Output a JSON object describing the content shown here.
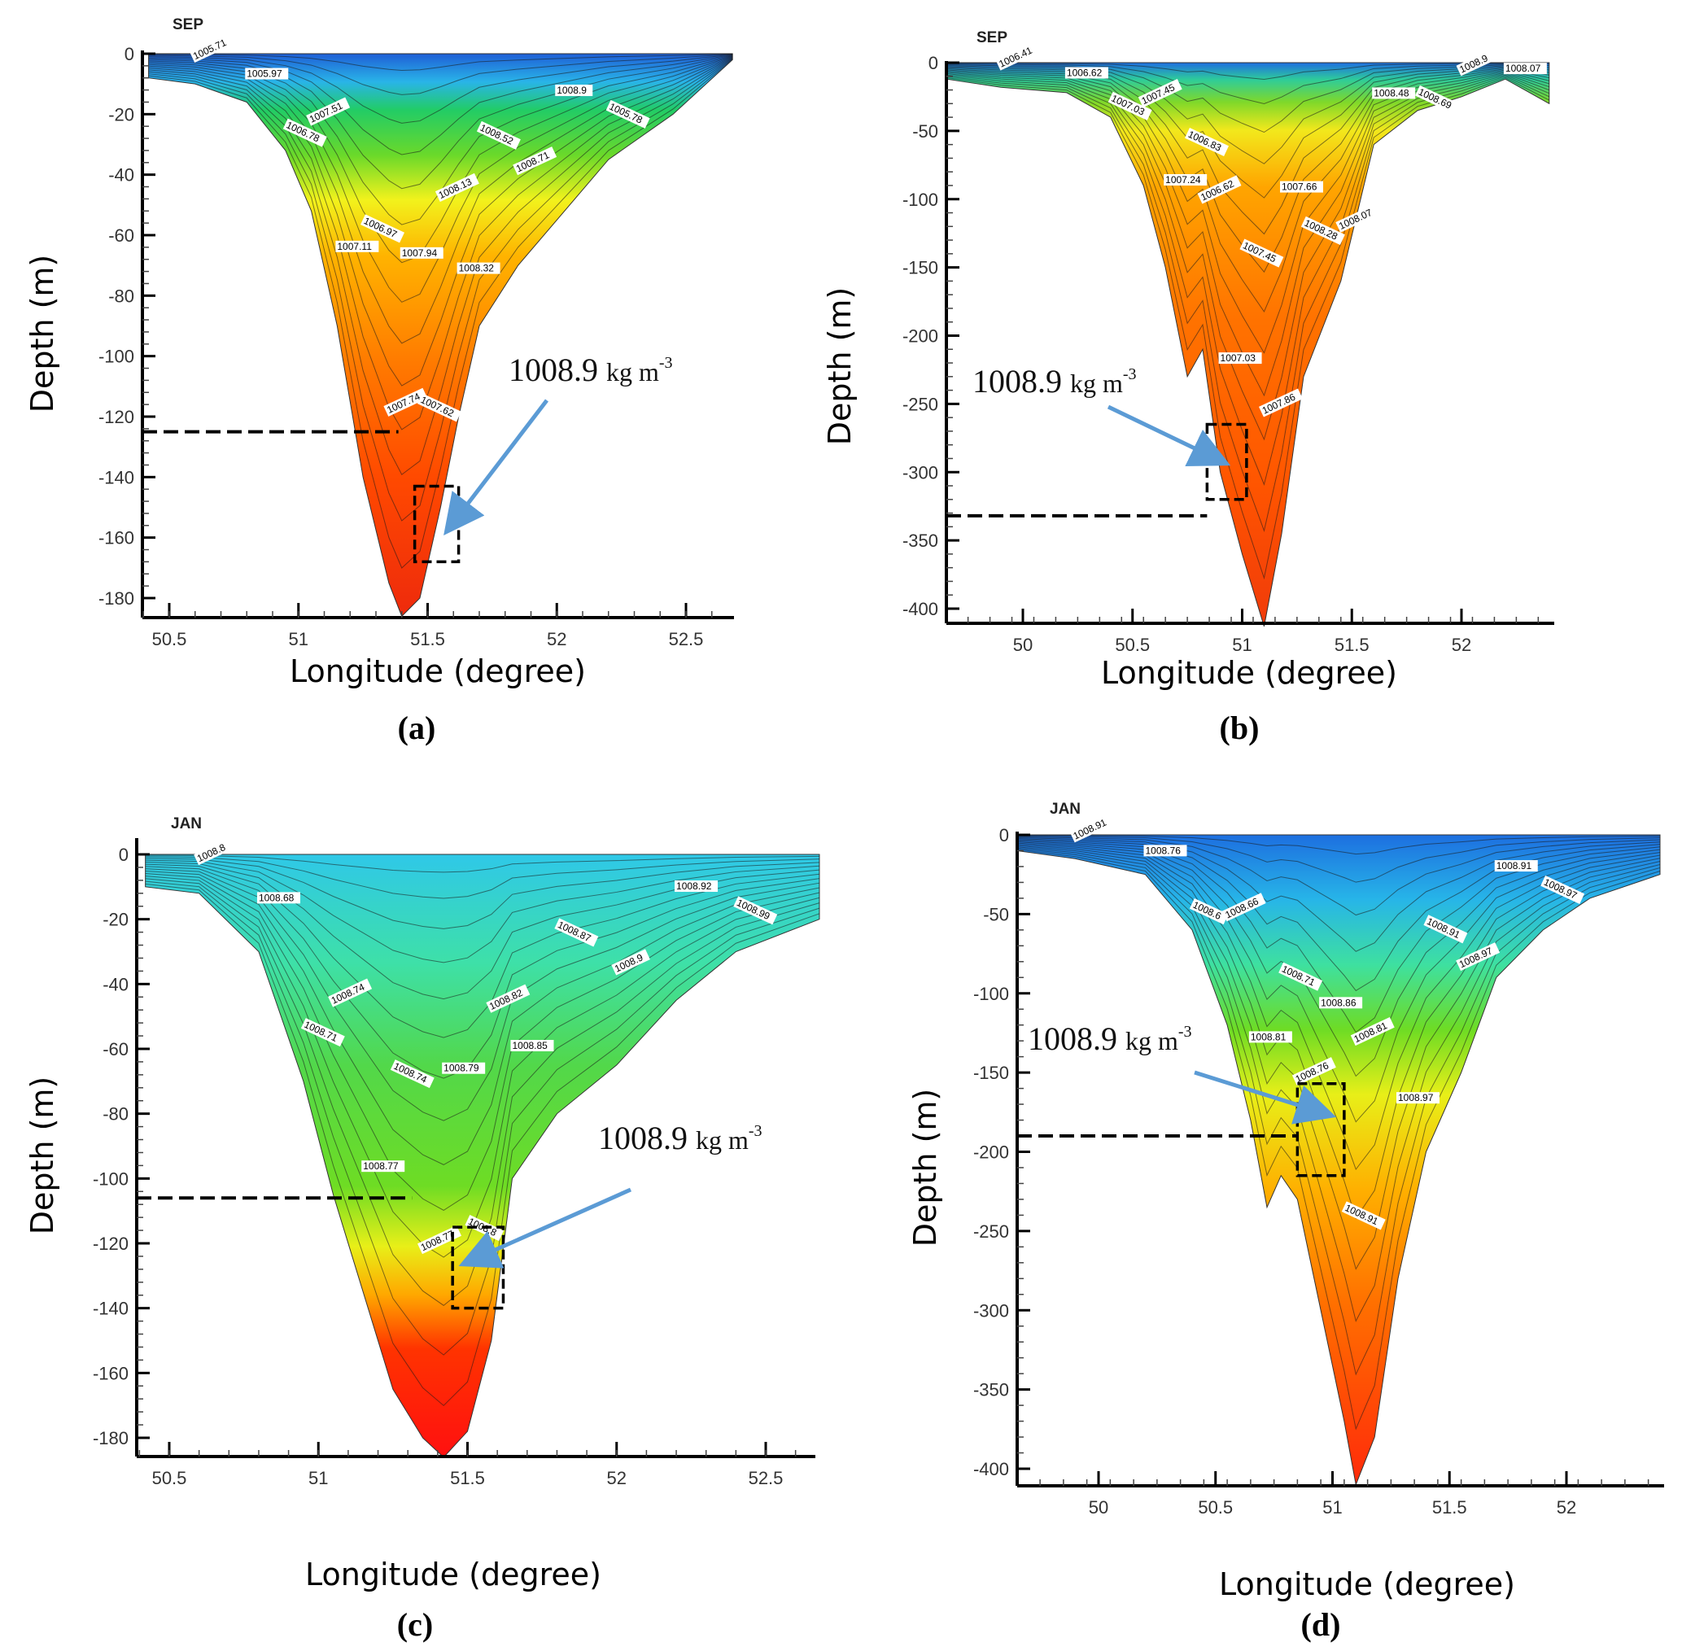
{
  "figure": {
    "description": "Vertical density sections (kg m-3) across the Persian Gulf: September (a,b) and January (c,d)"
  },
  "chart_data": [
    {
      "id": "a",
      "type": "heatmap",
      "panel_label": "(a)",
      "month": "SEP",
      "xlabel": "Longitude (degree)",
      "ylabel": "Depth (m)",
      "xlim": [
        50.4,
        52.7
      ],
      "ylim": [
        -186,
        0
      ],
      "x_ticks": [
        50.5,
        51,
        51.5,
        52,
        52.5
      ],
      "x_tick_labels": [
        "50.5",
        "51",
        "51.5",
        "52",
        "52.5"
      ],
      "y_ticks": [
        0,
        -20,
        -40,
        -60,
        -80,
        -100,
        -120,
        -140,
        -160,
        -180
      ],
      "y_tick_labels": [
        "0",
        "-20",
        "-40",
        "-60",
        "-80",
        "-100",
        "-120",
        "-140",
        "-160",
        "-180"
      ],
      "contour_labels": [
        "1005.71",
        "1005.97",
        "1006.78",
        "1007.51",
        "1007.11",
        "1006.97",
        "1007.74",
        "1007.94",
        "1007.62",
        "1008.13",
        "1008.32",
        "1008.52",
        "1008.71",
        "1008.9",
        "1005.78"
      ],
      "bottom_profile": {
        "x": [
          50.42,
          50.6,
          50.8,
          50.95,
          51.05,
          51.15,
          51.25,
          51.35,
          51.4,
          51.47,
          51.55,
          51.62,
          51.7,
          51.85,
          52.0,
          52.2,
          52.45,
          52.68
        ],
        "depth": [
          -8,
          -10,
          -16,
          -32,
          -52,
          -90,
          -140,
          -175,
          -186,
          -180,
          -150,
          -120,
          -90,
          -70,
          -55,
          -35,
          -20,
          -2
        ]
      },
      "annotation": {
        "text": "1008.9",
        "unit": "kg m",
        "sup": "-3",
        "target_lon": 51.6,
        "target_depth": -155
      },
      "dashed_line_depth": -125,
      "dashed_box": {
        "lon": [
          51.45,
          51.62
        ],
        "depth": [
          -143,
          -168
        ]
      },
      "surface_range": [
        1005.5,
        1009.0
      ],
      "colormap": "rainbow (blue=low density, red=high density)"
    },
    {
      "id": "b",
      "type": "heatmap",
      "panel_label": "(b)",
      "month": "SEP",
      "xlabel": "Longitude (degree)",
      "ylabel": "Depth (m)",
      "xlim": [
        49.65,
        52.4
      ],
      "ylim": [
        -413,
        0
      ],
      "x_ticks": [
        50,
        50.5,
        51,
        51.5,
        52
      ],
      "x_tick_labels": [
        "50",
        "50.5",
        "51",
        "51.5",
        "52"
      ],
      "y_ticks": [
        0,
        -50,
        -100,
        -150,
        -200,
        -250,
        -300,
        -350,
        -400
      ],
      "y_tick_labels": [
        "0",
        "-50",
        "-100",
        "-150",
        "-200",
        "-250",
        "-300",
        "-350",
        "-400"
      ],
      "contour_labels": [
        "1006.41",
        "1006.62",
        "1007.03",
        "1007.45",
        "1007.24",
        "1006.83",
        "1006.62",
        "1007.03",
        "1007.45",
        "1007.86",
        "1007.66",
        "1008.28",
        "1008.07",
        "1008.48",
        "1008.69",
        "1008.9",
        "1008.07"
      ],
      "bottom_profile": {
        "x": [
          49.65,
          49.9,
          50.2,
          50.4,
          50.55,
          50.65,
          50.75,
          50.82,
          50.9,
          51.0,
          51.1,
          51.18,
          51.28,
          51.45,
          51.6,
          51.8,
          52.0,
          52.2,
          52.4
        ],
        "depth": [
          -12,
          -18,
          -22,
          -40,
          -90,
          -150,
          -230,
          -210,
          -300,
          -360,
          -413,
          -345,
          -230,
          -160,
          -60,
          -35,
          -25,
          -12,
          -30
        ]
      },
      "annotation": {
        "text": "1008.9",
        "unit": "kg m",
        "sup": "-3",
        "target_lon": 50.88,
        "target_depth": -290
      },
      "dashed_line_depth": -332,
      "dashed_box": {
        "lon": [
          50.84,
          51.02
        ],
        "depth": [
          -265,
          -320
        ]
      },
      "surface_range": [
        1006.4,
        1009.0
      ],
      "colormap": "rainbow (blue=low density, red=high density)"
    },
    {
      "id": "c",
      "type": "heatmap",
      "panel_label": "(c)",
      "month": "JAN",
      "xlabel": "Longitude (degree)",
      "ylabel": "Depth (m)",
      "xlim": [
        50.4,
        52.7
      ],
      "ylim": [
        -186,
        0
      ],
      "x_ticks": [
        50.5,
        51,
        51.5,
        52,
        52.5
      ],
      "x_tick_labels": [
        "50.5",
        "51",
        "51.5",
        "52",
        "52.5"
      ],
      "y_ticks": [
        0,
        -20,
        -40,
        -60,
        -80,
        -100,
        -120,
        -140,
        -160,
        -180
      ],
      "y_tick_labels": [
        "0",
        "-20",
        "-40",
        "-60",
        "-80",
        "-100",
        "-120",
        "-140",
        "-160",
        "-180"
      ],
      "contour_labels": [
        "1008.8",
        "1008.68",
        "1008.71",
        "1008.74",
        "1008.77",
        "1008.74",
        "1008.77",
        "1008.79",
        "1008.8",
        "1008.82",
        "1008.85",
        "1008.87",
        "1008.9",
        "1008.92",
        "1008.99"
      ],
      "bottom_profile": {
        "x": [
          50.42,
          50.6,
          50.8,
          50.95,
          51.05,
          51.15,
          51.25,
          51.35,
          51.42,
          51.5,
          51.58,
          51.65,
          51.8,
          52.0,
          52.2,
          52.4,
          52.68
        ],
        "depth": [
          -10,
          -12,
          -30,
          -70,
          -105,
          -135,
          -165,
          -180,
          -186,
          -178,
          -150,
          -100,
          -80,
          -65,
          -45,
          -30,
          -20
        ]
      },
      "annotation": {
        "text": "1008.9",
        "unit": "kg m",
        "sup": "-3",
        "target_lon": 51.52,
        "target_depth": -125
      },
      "dashed_line_depth": -106,
      "dashed_box": {
        "lon": [
          51.45,
          51.62
        ],
        "depth": [
          -115,
          -140
        ]
      },
      "surface_range": [
        1008.65,
        1009.0
      ],
      "colormap": "rainbow (blue=low density, red=high density)"
    },
    {
      "id": "d",
      "type": "heatmap",
      "panel_label": "(d)",
      "month": "JAN",
      "xlabel": "Longitude (degree)",
      "ylabel": "Depth (m)",
      "xlim": [
        49.65,
        52.4
      ],
      "ylim": [
        -413,
        0
      ],
      "x_ticks": [
        50,
        50.5,
        51,
        51.5,
        52
      ],
      "x_tick_labels": [
        "50",
        "50.5",
        "51",
        "51.5",
        "52"
      ],
      "y_ticks": [
        0,
        -50,
        -100,
        -150,
        -200,
        -250,
        -300,
        -350,
        -400
      ],
      "y_tick_labels": [
        "0",
        "-50",
        "-100",
        "-150",
        "-200",
        "-250",
        "-300",
        "-350",
        "-400"
      ],
      "contour_labels": [
        "1008.91",
        "1008.76",
        "1008.6",
        "1008.66",
        "1008.81",
        "1008.71",
        "1008.76",
        "1008.86",
        "1008.91",
        "1008.81",
        "1008.97",
        "1008.91",
        "1008.97",
        "1008.91",
        "1008.97"
      ],
      "bottom_profile": {
        "x": [
          49.65,
          49.9,
          50.2,
          50.4,
          50.55,
          50.65,
          50.72,
          50.78,
          50.85,
          50.95,
          51.05,
          51.1,
          51.18,
          51.28,
          51.4,
          51.55,
          51.7,
          51.9,
          52.1,
          52.4
        ],
        "depth": [
          -10,
          -15,
          -25,
          -60,
          -120,
          -180,
          -235,
          -215,
          -230,
          -300,
          -370,
          -410,
          -380,
          -280,
          -200,
          -150,
          -90,
          -60,
          -40,
          -25
        ]
      },
      "annotation": {
        "text": "1008.9",
        "unit": "kg m",
        "sup": "-3",
        "target_lon": 50.95,
        "target_depth": -175
      },
      "dashed_line_depth": -190,
      "dashed_box": {
        "lon": [
          50.85,
          51.05
        ],
        "depth": [
          -157,
          -215
        ]
      },
      "surface_range": [
        1008.6,
        1009.0
      ],
      "colormap": "rainbow (blue=low density, red=high density)"
    }
  ]
}
